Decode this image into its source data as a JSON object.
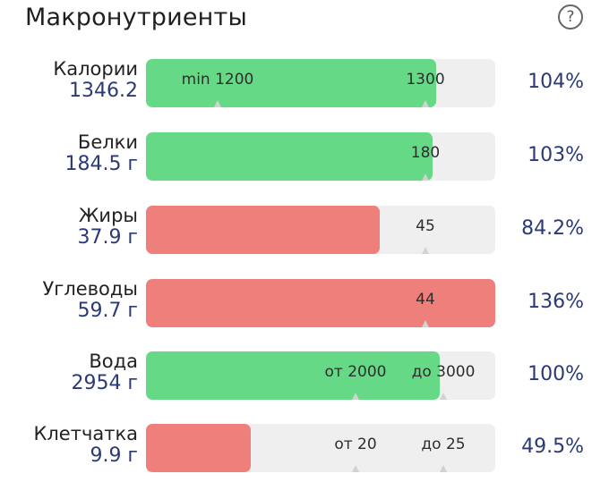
{
  "header": {
    "title": "Макронутриенты",
    "help_icon": "question-circle-icon"
  },
  "colors": {
    "good": "#66d986",
    "bad": "#ee7f7a",
    "track": "#efefef",
    "value_text": "#2b3a76"
  },
  "rows": [
    {
      "label": "Калории",
      "value": "1346.2",
      "percent_text": "104%",
      "fill_fraction": 0.83,
      "status": "good",
      "markers": [
        {
          "text": "min 1200",
          "pos": 0.205
        },
        {
          "text": "1300",
          "pos": 0.8
        }
      ]
    },
    {
      "label": "Белки",
      "value": "184.5 г",
      "percent_text": "103%",
      "fill_fraction": 0.82,
      "status": "good",
      "markers": [
        {
          "text": "180",
          "pos": 0.8
        }
      ]
    },
    {
      "label": "Жиры",
      "value": "37.9 г",
      "percent_text": "84.2%",
      "fill_fraction": 0.67,
      "status": "bad",
      "markers": [
        {
          "text": "45",
          "pos": 0.8
        }
      ]
    },
    {
      "label": "Углеводы",
      "value": "59.7 г",
      "percent_text": "136%",
      "fill_fraction": 1.0,
      "status": "bad",
      "markers": [
        {
          "text": "44",
          "pos": 0.8
        }
      ]
    },
    {
      "label": "Вода",
      "value": "2954 г",
      "percent_text": "100%",
      "fill_fraction": 0.84,
      "status": "good",
      "markers": [
        {
          "text": "от 2000",
          "pos": 0.6
        },
        {
          "text": "до 3000",
          "pos": 0.85
        }
      ]
    },
    {
      "label": "Клетчатка",
      "value": "9.9 г",
      "percent_text": "49.5%",
      "fill_fraction": 0.3,
      "status": "bad",
      "markers": [
        {
          "text": "от 20",
          "pos": 0.6
        },
        {
          "text": "до 25",
          "pos": 0.85
        }
      ]
    }
  ]
}
